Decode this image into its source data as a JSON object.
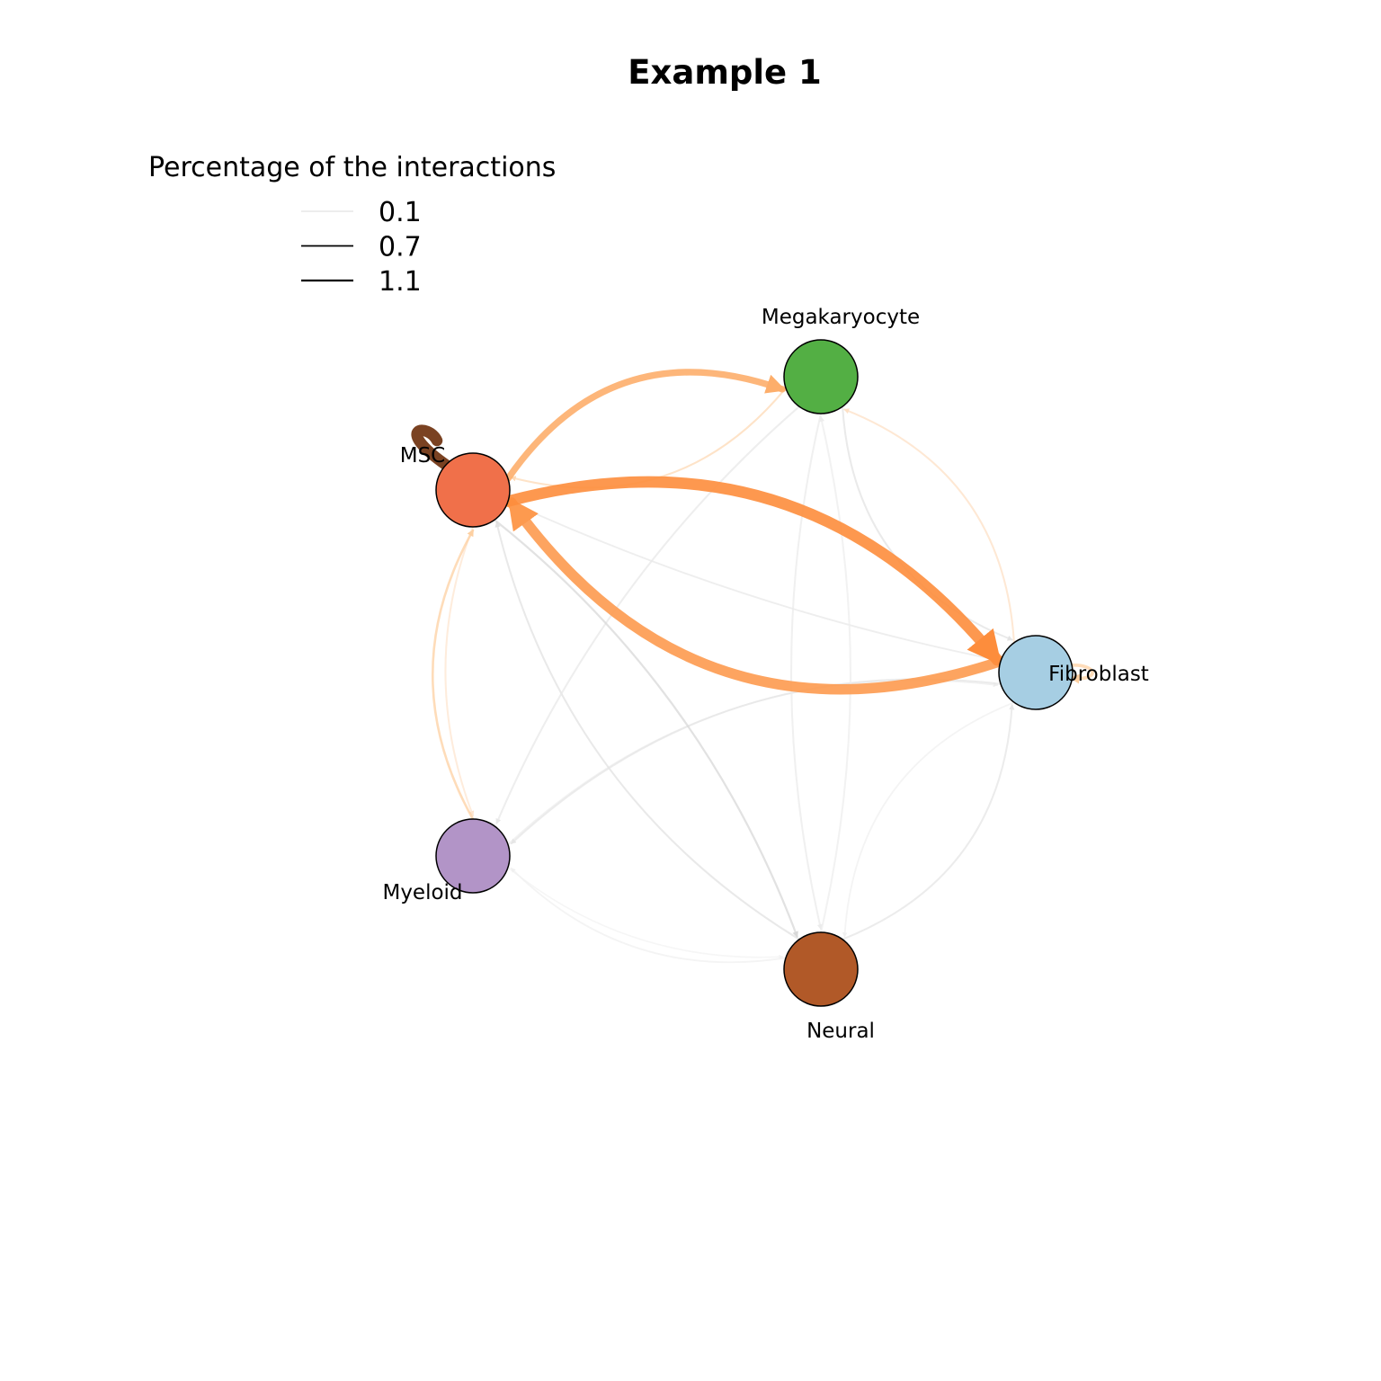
{
  "title": "Example 1",
  "legend": {
    "title": "Percentage of the interactions",
    "items": [
      {
        "label": "0.1",
        "value": 0.1
      },
      {
        "label": "0.7",
        "value": 0.7
      },
      {
        "label": "1.1",
        "value": 1.1
      }
    ]
  },
  "nodes": [
    {
      "id": "megakaryocyte",
      "label": "Megakaryocyte",
      "color": "#53af44"
    },
    {
      "id": "msc",
      "label": "MSC",
      "color": "#f0704a"
    },
    {
      "id": "fibroblast",
      "label": "Fibroblast",
      "color": "#a6cee3"
    },
    {
      "id": "myeloid",
      "label": "Myeloid",
      "color": "#b294c7"
    },
    {
      "id": "neural",
      "label": "Neural",
      "color": "#b15928"
    }
  ],
  "edges": [
    {
      "source": "msc",
      "target": "fibroblast",
      "weight": 1.1,
      "color": "#fd8d3c"
    },
    {
      "source": "fibroblast",
      "target": "msc",
      "weight": 1.0,
      "color": "#fd9a4f"
    },
    {
      "source": "msc",
      "target": "megakaryocyte",
      "weight": 0.6,
      "color": "#fdae6b"
    },
    {
      "source": "msc",
      "target": "msc",
      "weight": 1.1,
      "color": "#6b2e0a"
    },
    {
      "source": "myeloid",
      "target": "msc",
      "weight": 0.15,
      "color": "#fdd0a2"
    },
    {
      "source": "fibroblast",
      "target": "fibroblast",
      "weight": 0.25,
      "color": "#fdd0a2"
    },
    {
      "source": "megakaryocyte",
      "target": "msc",
      "weight": 0.1,
      "color": "#fdd9b5"
    },
    {
      "source": "fibroblast",
      "target": "megakaryocyte",
      "weight": 0.1,
      "color": "#fde0c5"
    },
    {
      "source": "msc",
      "target": "myeloid",
      "weight": 0.1,
      "color": "#fde5d0"
    },
    {
      "source": "msc",
      "target": "neural",
      "weight": 0.12,
      "color": "#d8d8d8"
    },
    {
      "source": "neural",
      "target": "msc",
      "weight": 0.1,
      "color": "#e2e2e2"
    },
    {
      "source": "megakaryocyte",
      "target": "fibroblast",
      "weight": 0.1,
      "color": "#e3e3e3"
    },
    {
      "source": "fibroblast",
      "target": "myeloid",
      "weight": 0.1,
      "color": "#e6e6e6"
    },
    {
      "source": "neural",
      "target": "fibroblast",
      "weight": 0.1,
      "color": "#e6e6e6"
    },
    {
      "source": "megakaryocyte",
      "target": "myeloid",
      "weight": 0.1,
      "color": "#e8e8e8"
    },
    {
      "source": "megakaryocyte",
      "target": "neural",
      "weight": 0.1,
      "color": "#ebebeb"
    },
    {
      "source": "neural",
      "target": "megakaryocyte",
      "weight": 0.1,
      "color": "#ededed"
    },
    {
      "source": "msc",
      "target": "fibroblast",
      "weight": 0.08,
      "color": "#e8e8e8"
    },
    {
      "source": "myeloid",
      "target": "fibroblast",
      "weight": 0.08,
      "color": "#ededed"
    },
    {
      "source": "fibroblast",
      "target": "neural",
      "weight": 0.08,
      "color": "#f0f0f0"
    },
    {
      "source": "neural",
      "target": "myeloid",
      "weight": 0.08,
      "color": "#f0f0f0"
    },
    {
      "source": "myeloid",
      "target": "neural",
      "weight": 0.06,
      "color": "#f3f3f3"
    }
  ]
}
